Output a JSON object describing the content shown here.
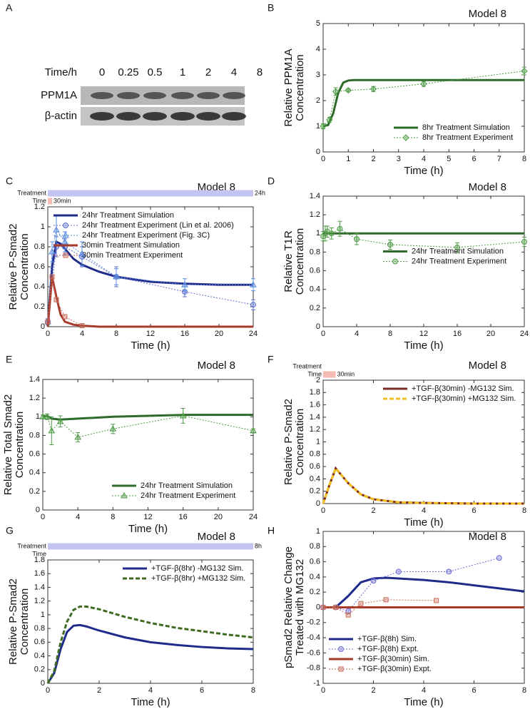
{
  "panel_a": {
    "panel": "A",
    "time_label": "Time/h",
    "times": [
      "0",
      "0.25",
      "0.5",
      "1",
      "2",
      "4",
      "8"
    ],
    "rows": [
      "PPM1A",
      "β-actin"
    ]
  },
  "chart_data": [
    {
      "type": "line",
      "panel": "B",
      "title": "Model 8",
      "xlabel": "Time (h)",
      "ylabel": [
        "Relative PPM1A",
        "Concentration"
      ],
      "xlim": [
        0,
        8
      ],
      "xticks": [
        0,
        1,
        2,
        3,
        4,
        5,
        6,
        7,
        8
      ],
      "ylim": [
        0,
        5
      ],
      "yticks": [
        0,
        1,
        2,
        3,
        4,
        5
      ],
      "legend": "lower right",
      "series": [
        {
          "name": "8hr Treatment Simulation",
          "color": "#2e6b2a",
          "x": [
            0,
            0.2,
            0.4,
            0.6,
            0.8,
            1,
            1.2,
            1.5,
            2,
            8
          ],
          "values": [
            1,
            1.05,
            1.5,
            2.3,
            2.7,
            2.78,
            2.8,
            2.8,
            2.8,
            2.8
          ]
        },
        {
          "name": "8hr Treatment Experiment",
          "color": "#4e9a46",
          "marker": "diamond",
          "dash": true,
          "x": [
            0,
            0.25,
            0.5,
            1,
            2,
            4,
            8
          ],
          "values": [
            1,
            1.25,
            2.35,
            2.4,
            2.45,
            2.65,
            3.15
          ],
          "errors": [
            0.1,
            0.1,
            0.15,
            0.05,
            0.1,
            0.1,
            0.15
          ]
        }
      ]
    },
    {
      "type": "line",
      "panel": "C",
      "title": "Model 8",
      "xlabel": "Time (h)",
      "ylabel": [
        "Relative P-Smad2",
        "Concentration"
      ],
      "xlim": [
        0,
        24
      ],
      "xticks": [
        0,
        4,
        8,
        12,
        16,
        20,
        24
      ],
      "ylim": [
        0,
        1.2
      ],
      "yticks": [
        0,
        0.2,
        0.4,
        0.6,
        0.8,
        1,
        1.2
      ],
      "legend": "upper left",
      "treatment_bars": [
        {
          "label": "Treatment",
          "text": "24h",
          "end": 24,
          "color": "#c4c4f2"
        },
        {
          "label": "Time",
          "text": "30min",
          "end": 0.5,
          "color": "#f4bcb4"
        }
      ],
      "series": [
        {
          "name": "24hr Treatment Simulation",
          "color": "#1f2a8a",
          "x": [
            0,
            0.5,
            1,
            1.5,
            2,
            3,
            4,
            6,
            8,
            12,
            16,
            20,
            24
          ],
          "values": [
            0,
            0.6,
            0.85,
            0.83,
            0.78,
            0.68,
            0.62,
            0.55,
            0.5,
            0.45,
            0.43,
            0.42,
            0.42
          ]
        },
        {
          "name": "24hr Treatment Experiment (Lin et al. 2006)",
          "color": "#5a6fd0",
          "marker": "circle",
          "dash": true,
          "x": [
            0,
            1,
            2,
            4,
            8,
            16,
            24
          ],
          "values": [
            0.05,
            0.8,
            0.8,
            0.7,
            0.5,
            0.35,
            0.22
          ],
          "errors": [
            0.03,
            0.1,
            0.08,
            0.1,
            0.1,
            0.05,
            0.05
          ]
        },
        {
          "name": "24hr Treatment Experiment (Fig. 3C)",
          "color": "#5a8ce0",
          "marker": "triangle",
          "dash": true,
          "x": [
            0,
            0.5,
            1,
            2,
            4,
            8,
            16,
            24
          ],
          "values": [
            0.05,
            0.75,
            0.97,
            0.85,
            0.73,
            0.5,
            0.42,
            0.42
          ],
          "errors": [
            0.03,
            0.1,
            0.15,
            0.1,
            0.12,
            0.08,
            0.06,
            0.06
          ]
        },
        {
          "name": "30min Treatment Simulation",
          "color": "#a83a2a",
          "x": [
            0,
            0.5,
            0.75,
            1,
            1.5,
            2,
            3,
            4,
            6,
            24
          ],
          "values": [
            0,
            0.5,
            0.4,
            0.3,
            0.12,
            0.05,
            0.02,
            0.01,
            0,
            0
          ]
        },
        {
          "name": "30min Treatment Experiment",
          "color": "#c86a58",
          "marker": "square",
          "dash": true,
          "x": [
            0,
            0.5,
            1,
            2,
            4
          ],
          "values": [
            0.05,
            0.5,
            0.27,
            0.1,
            0.01
          ]
        }
      ]
    },
    {
      "type": "line",
      "panel": "D",
      "title": "Model 8",
      "xlabel": "Time (h)",
      "ylabel": [
        "Relative T1R",
        "Concentration"
      ],
      "xlim": [
        0,
        24
      ],
      "xticks": [
        0,
        4,
        8,
        12,
        16,
        20,
        24
      ],
      "ylim": [
        0,
        1.4
      ],
      "yticks": [
        0,
        0.2,
        0.4,
        0.6,
        0.8,
        1,
        1.2,
        1.4
      ],
      "legend": "center right",
      "series": [
        {
          "name": "24hr Treatment Simulation",
          "color": "#2e6b2a",
          "x": [
            0,
            1,
            24
          ],
          "values": [
            1,
            1,
            1
          ]
        },
        {
          "name": "24hr Treatment Experiment",
          "color": "#4e9a46",
          "marker": "circle",
          "dash": true,
          "x": [
            0,
            0.25,
            0.5,
            1,
            2,
            4,
            8,
            16,
            24
          ],
          "values": [
            0.97,
            1,
            1.02,
            1,
            1.05,
            0.94,
            0.88,
            0.85,
            0.91
          ],
          "errors": [
            0.05,
            0.08,
            0.06,
            0.06,
            0.08,
            0.06,
            0.05,
            0.05,
            0.05
          ]
        }
      ]
    },
    {
      "type": "line",
      "panel": "E",
      "title": "Model 8",
      "xlabel": "Time (h)",
      "ylabel": [
        "Relative Total Smad2",
        "Concentration"
      ],
      "xlim": [
        0,
        24
      ],
      "xticks": [
        0,
        4,
        8,
        12,
        16,
        20,
        24
      ],
      "ylim": [
        0,
        1.4
      ],
      "yticks": [
        0,
        0.2,
        0.4,
        0.6,
        0.8,
        1,
        1.2,
        1.4
      ],
      "legend": "lower right",
      "series": [
        {
          "name": "24hr Treatment Simulation",
          "color": "#2e6b2a",
          "x": [
            0,
            0.5,
            1,
            2,
            4,
            8,
            16,
            24
          ],
          "values": [
            1,
            1.01,
            0.98,
            0.97,
            0.98,
            1,
            1.02,
            1.02
          ]
        },
        {
          "name": "24hr Treatment Experiment",
          "color": "#4e9a46",
          "marker": "triangle",
          "dash": true,
          "x": [
            0,
            0.5,
            1,
            2,
            4,
            8,
            16,
            24
          ],
          "values": [
            1,
            1,
            0.85,
            0.95,
            0.78,
            0.87,
            1.01,
            0.85
          ],
          "errors": [
            0.02,
            0.03,
            0.15,
            0.06,
            0.05,
            0.05,
            0.08,
            0.02
          ]
        }
      ]
    },
    {
      "type": "line",
      "panel": "F",
      "title": "Model 8",
      "xlabel": "Time (h)",
      "ylabel": [
        "Relative P-Smad2",
        "Concentration"
      ],
      "xlim": [
        0,
        8
      ],
      "xticks": [
        0,
        2,
        4,
        6,
        8
      ],
      "ylim": [
        0,
        2
      ],
      "yticks": [
        0,
        0.2,
        0.4,
        0.6,
        0.8,
        1,
        1.2,
        1.4,
        1.6,
        1.8,
        2
      ],
      "legend": "upper right",
      "treatment_bars": [
        {
          "label": "Treatment"
        },
        {
          "label": "Time",
          "text": "30min",
          "end": 0.5,
          "color": "#f4bcb4"
        }
      ],
      "series": [
        {
          "name": "+TGF-β(30min) -MG132 Sim.",
          "color": "#7a2a20",
          "x": [
            0,
            0.25,
            0.5,
            0.75,
            1,
            1.5,
            2,
            3,
            4,
            6,
            8
          ],
          "values": [
            0,
            0.3,
            0.57,
            0.45,
            0.33,
            0.15,
            0.07,
            0.02,
            0.01,
            0,
            0
          ]
        },
        {
          "name": "+TGF-β(30min) +MG132 Sim.",
          "color": "#f0c020",
          "dash": true,
          "x": [
            0,
            0.25,
            0.5,
            0.75,
            1,
            1.5,
            2,
            3,
            4,
            6,
            8
          ],
          "values": [
            0,
            0.3,
            0.57,
            0.45,
            0.33,
            0.15,
            0.07,
            0.02,
            0.01,
            0,
            0
          ]
        }
      ]
    },
    {
      "type": "line",
      "panel": "G",
      "title": "Model 8",
      "xlabel": "Time (h)",
      "ylabel": [
        "Relative P-Smad2",
        "Concentration"
      ],
      "xlim": [
        0,
        8
      ],
      "xticks": [
        0,
        2,
        4,
        6,
        8
      ],
      "ylim": [
        0,
        1.8
      ],
      "yticks": [
        0,
        0.2,
        0.4,
        0.6,
        0.8,
        1,
        1.2,
        1.4,
        1.6,
        1.8
      ],
      "legend": "upper right",
      "treatment_bars": [
        {
          "label": "Treatment",
          "text": "8h",
          "end": 8,
          "color": "#c4c4f2"
        },
        {
          "label": "Time"
        }
      ],
      "series": [
        {
          "name": "+TGF-β(8hr) -MG132 Sim.",
          "color": "#1f2a8a",
          "x": [
            0,
            0.25,
            0.5,
            0.75,
            1,
            1.25,
            1.5,
            2,
            3,
            4,
            5,
            6,
            7,
            8
          ],
          "values": [
            0,
            0.15,
            0.5,
            0.75,
            0.84,
            0.85,
            0.83,
            0.77,
            0.67,
            0.6,
            0.56,
            0.53,
            0.51,
            0.5
          ]
        },
        {
          "name": "+TGF-β(8hr) +MG132 Sim.",
          "color": "#3e6a22",
          "dash": true,
          "x": [
            0,
            0.25,
            0.5,
            0.75,
            1,
            1.25,
            1.5,
            2,
            3,
            4,
            5,
            6,
            7,
            8
          ],
          "values": [
            0,
            0.18,
            0.6,
            0.9,
            1.07,
            1.12,
            1.12,
            1.08,
            0.97,
            0.88,
            0.81,
            0.76,
            0.71,
            0.67
          ]
        }
      ]
    },
    {
      "type": "line",
      "panel": "H",
      "title": "Model 8",
      "xlabel": "Time (h)",
      "ylabel": [
        "pSmad2 Relative Change",
        "Treated with MG132"
      ],
      "xlim": [
        0,
        8
      ],
      "xticks": [
        0,
        2,
        4,
        6,
        8
      ],
      "ylim": [
        -1,
        1
      ],
      "yticks": [
        -1,
        -0.8,
        -0.6,
        -0.4,
        -0.2,
        0,
        0.2,
        0.4,
        0.6,
        0.8,
        1
      ],
      "legend": "lower left",
      "series": [
        {
          "name": "+TGF-β(8h) Sim.",
          "color": "#1f2a8a",
          "x": [
            0,
            0.5,
            1,
            1.5,
            2,
            2.5,
            3,
            4,
            5,
            6,
            7,
            8
          ],
          "values": [
            0,
            0,
            0.15,
            0.33,
            0.38,
            0.39,
            0.38,
            0.36,
            0.33,
            0.29,
            0.25,
            0.21
          ]
        },
        {
          "name": "+TGF-β(8h) Expt.",
          "color": "#6a6ad8",
          "marker": "circle",
          "dash": true,
          "x": [
            0,
            0.5,
            1,
            2,
            3,
            5,
            7
          ],
          "values": [
            0,
            0,
            -0.05,
            0.35,
            0.47,
            0.47,
            0.65
          ]
        },
        {
          "name": "+TGF-β(30min) Sim.",
          "color": "#a83a2a",
          "x": [
            0,
            8
          ],
          "values": [
            0,
            0
          ]
        },
        {
          "name": "+TGF-β(30min) Expt.",
          "color": "#c86a58",
          "marker": "square",
          "dash": true,
          "x": [
            0,
            0.5,
            1,
            1.5,
            2.5,
            4.5
          ],
          "values": [
            0,
            0,
            -0.1,
            0.05,
            0.1,
            0.09
          ]
        }
      ]
    }
  ]
}
